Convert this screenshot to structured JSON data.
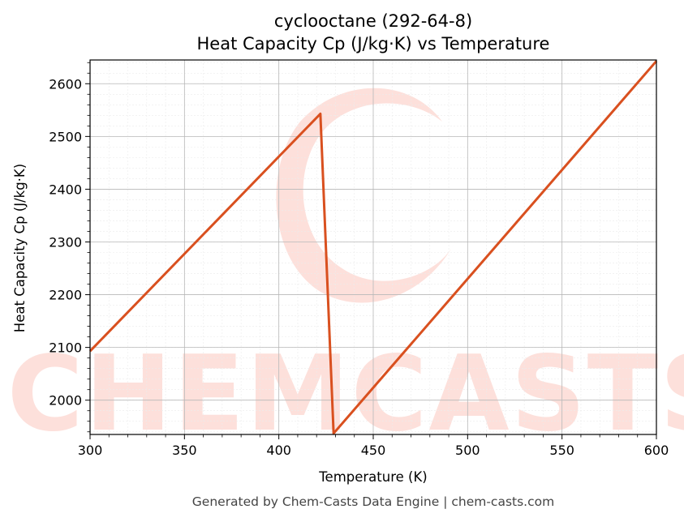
{
  "chart_data": {
    "type": "line",
    "title": "cyclooctane (292-64-8)",
    "subtitle": "Heat Capacity Cp (J/kg·K) vs Temperature",
    "xlabel": "Temperature (K)",
    "ylabel": "Heat Capacity Cp (J/kg·K)",
    "xlim": [
      300,
      600
    ],
    "ylim": [
      1935,
      2645
    ],
    "x_ticks": [
      300,
      350,
      400,
      450,
      500,
      550,
      600
    ],
    "y_ticks": [
      2000,
      2100,
      2200,
      2300,
      2400,
      2500,
      2600
    ],
    "grid": true,
    "legend": "none",
    "series": [
      {
        "x": [
          300,
          422,
          429,
          600
        ],
        "y": [
          2093,
          2543,
          1937,
          2643
        ]
      }
    ],
    "line_color": "#d9501f"
  },
  "watermark": {
    "text": "CHEMCASTS",
    "color": "#fde0db"
  },
  "footer": "Generated by Chem-Casts Data Engine | chem-casts.com"
}
